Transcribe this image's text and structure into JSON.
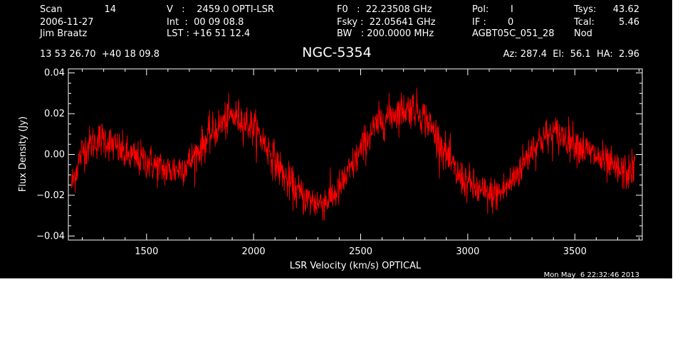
{
  "header": {
    "col1": {
      "scan_label": "Scan",
      "scan_value": "14",
      "date": "2006-11-27",
      "observer": "Jim Braatz"
    },
    "col2": {
      "v_line": "V   :    2459.0 OPTI-LSR",
      "int_line": "Int  :  00 09 08.8",
      "lst_line": "LST : +16 51 12.4"
    },
    "col3": {
      "f0_line": "F0   :  22.23508 GHz",
      "fsky_line": "Fsky :  22.05641 GHz",
      "bw_line": "BW   : 200.0000 MHz"
    },
    "col4": {
      "pol_label": "Pol:",
      "pol_value": "I",
      "if_label": "IF :",
      "if_value": "0",
      "project": "AGBT05C_051_28"
    },
    "col5": {
      "tsys_label": "Tsys:",
      "tsys_value": "43.62",
      "tcal_label": "Tcal:",
      "tcal_value": "5.46",
      "proc": "Nod"
    },
    "coords": "13 53 26.70  +40 18 09.8",
    "source": "NGC-5354",
    "pointing": "Az: 287.4  El:  56.1  HA:  2.96",
    "timestamp": "Mon May  6 22:32:46 2013"
  },
  "colors": {
    "background": "#000000",
    "foreground": "#ffffff",
    "series": "#ff0000"
  },
  "chart_data": {
    "type": "line",
    "title": "NGC-5354",
    "xlabel": "LSR Velocity (km/s) OPTICAL",
    "ylabel": "Flux Density (Jy)",
    "xlim": [
      1135,
      3815
    ],
    "ylim": [
      -0.042,
      0.042
    ],
    "xticks": [
      1500,
      2000,
      2500,
      3000,
      3500
    ],
    "xtick_labels": [
      "1500",
      "2000",
      "2500",
      "3000",
      "3500"
    ],
    "yticks": [
      -0.04,
      -0.02,
      0.0,
      0.02,
      0.04
    ],
    "ytick_labels": [
      "−0.04",
      "−0.02",
      "0.00",
      "0.02",
      "0.04"
    ],
    "grid": false,
    "legend": "none",
    "noise_rms": 0.0045,
    "series": [
      {
        "x": [
          1150,
          1200,
          1250,
          1300,
          1350,
          1400,
          1450,
          1500,
          1550,
          1600,
          1650,
          1700,
          1750,
          1800,
          1850,
          1900,
          1950,
          2000,
          2050,
          2100,
          2150,
          2200,
          2250,
          2300,
          2350,
          2400,
          2450,
          2500,
          2550,
          2600,
          2650,
          2700,
          2750,
          2800,
          2850,
          2900,
          2950,
          3000,
          3050,
          3100,
          3150,
          3200,
          3250,
          3300,
          3350,
          3400,
          3450,
          3500,
          3550,
          3600,
          3650,
          3700,
          3750,
          3780
        ],
        "y": [
          -0.015,
          0.002,
          0.006,
          0.008,
          0.004,
          0.0,
          -0.002,
          -0.003,
          -0.006,
          -0.008,
          -0.007,
          -0.004,
          0.003,
          0.01,
          0.015,
          0.019,
          0.017,
          0.013,
          0.006,
          -0.003,
          -0.012,
          -0.018,
          -0.022,
          -0.024,
          -0.022,
          -0.017,
          -0.008,
          0.002,
          0.011,
          0.017,
          0.02,
          0.022,
          0.023,
          0.018,
          0.01,
          0.0,
          -0.01,
          -0.014,
          -0.018,
          -0.02,
          -0.019,
          -0.014,
          -0.006,
          0.003,
          0.008,
          0.01,
          0.009,
          0.006,
          0.002,
          -0.001,
          -0.005,
          -0.008,
          -0.009,
          -0.006
        ]
      }
    ]
  }
}
